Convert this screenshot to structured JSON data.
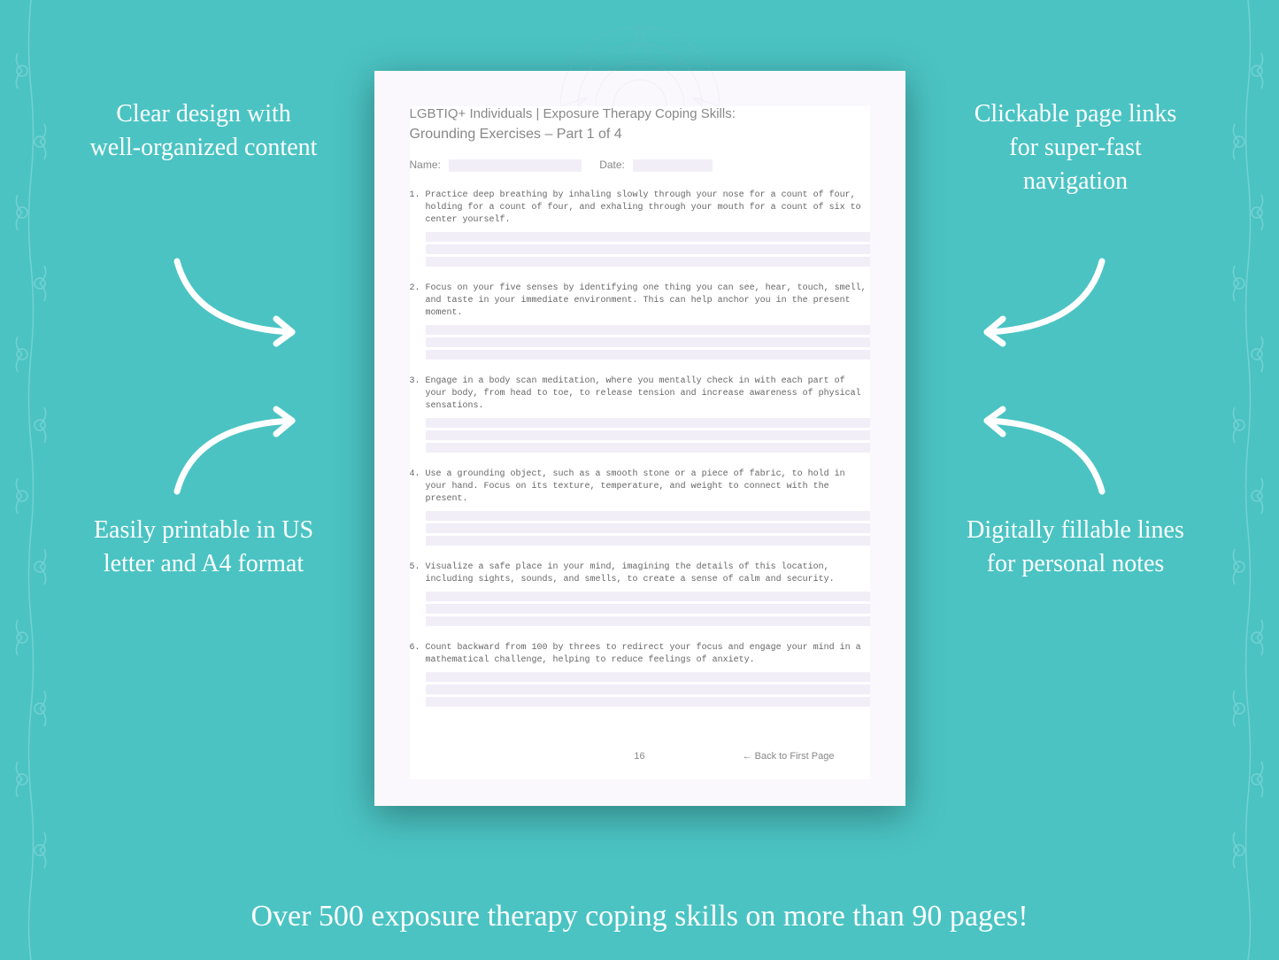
{
  "background_color": "#4bc3c3",
  "callouts": {
    "top_left": "Clear design with well-organized content",
    "top_right": "Clickable page links for super-fast navigation",
    "bottom_left": "Easily printable in US letter and A4 format",
    "bottom_right": "Digitally fillable lines for personal notes"
  },
  "bottom_banner": "Over 500 exposure therapy coping skills on more than 90 pages!",
  "document": {
    "title_line1": "LGBTIQ+ Individuals | Exposure Therapy Coping Skills:",
    "title_line2": "Grounding Exercises  – Part 1 of 4",
    "name_label": "Name:",
    "date_label": "Date:",
    "exercises": [
      {
        "num": "1.",
        "text": "Practice deep breathing by inhaling slowly through your nose for a count of four, holding for a count of four, and exhaling through your mouth for a count of six to center yourself."
      },
      {
        "num": "2.",
        "text": "Focus on your five senses by identifying one thing you can see, hear, touch, smell, and taste in your immediate environment. This can help anchor you in the present moment."
      },
      {
        "num": "3.",
        "text": "Engage in a body scan meditation, where you mentally check in with each part of your body, from head to toe, to release tension and increase awareness of physical sensations."
      },
      {
        "num": "4.",
        "text": "Use a grounding object, such as a smooth stone or a piece of fabric, to hold in your hand. Focus on its texture, temperature, and weight to connect with the present."
      },
      {
        "num": "5.",
        "text": "Visualize a safe place in your mind, imagining the details of this location, including sights, sounds, and smells, to create a sense of calm and security."
      },
      {
        "num": "6.",
        "text": "Count backward from 100 by threes to redirect your focus and engage your mind in a mathematical challenge, helping to reduce feelings of anxiety."
      }
    ],
    "page_number": "16",
    "back_link": "← Back to First Page",
    "fill_line_color": "#f2eef8",
    "text_color": "#666666",
    "heading_color": "#888888"
  },
  "style": {
    "callout_color": "#ffffff",
    "callout_fontsize": 28,
    "banner_fontsize": 34,
    "arrow_color": "#ffffff",
    "arrow_stroke_width": 6,
    "page_shadow": "0 10px 40px rgba(0,0,0,0.35)",
    "floral_opacity": 0.25
  }
}
